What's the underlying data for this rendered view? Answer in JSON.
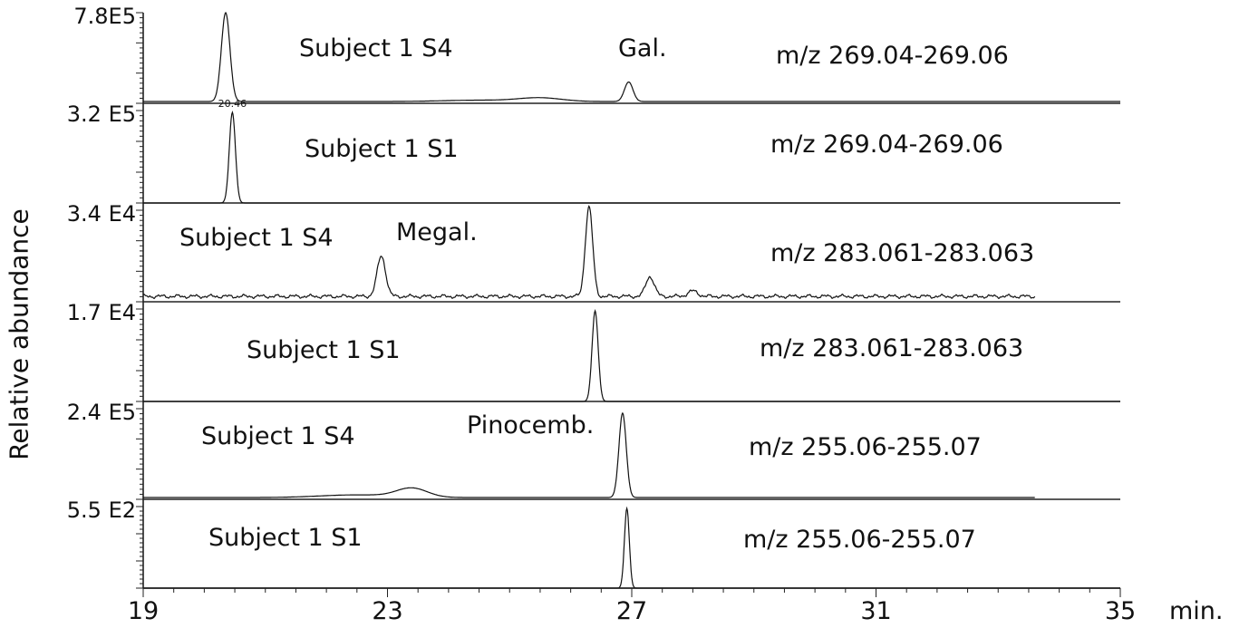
{
  "chart_data": {
    "type": "line",
    "ylabel": "Relative abundance",
    "x_unit": "min.",
    "xlim": [
      19,
      35
    ],
    "x_ticks": [
      19,
      23,
      27,
      31,
      35
    ],
    "panels": [
      {
        "scale_label": "7.8E5",
        "sample_label": "Subject 1 S4",
        "mz_label": "m/z 269.04-269.06",
        "peak_label": "Gal.",
        "baseline": 0.02,
        "noise": 0,
        "peaks": [
          {
            "rt": 20.35,
            "height": 1.0,
            "width": 0.07
          },
          {
            "rt": 26.95,
            "height": 0.22,
            "width": 0.07
          },
          {
            "rt": 25.5,
            "height": 0.04,
            "width": 0.35
          },
          {
            "rt": 24.5,
            "height": 0.015,
            "width": 0.6
          }
        ],
        "ends_at": 35
      },
      {
        "scale_label": "3.2 E5",
        "sample_label": "Subject 1 S1",
        "mz_label": "m/z 269.04-269.06",
        "rt_annotation": "20.46",
        "baseline": 0,
        "noise": 0,
        "peaks": [
          {
            "rt": 20.46,
            "height": 1.0,
            "width": 0.05
          }
        ],
        "ends_at": 35
      },
      {
        "scale_label": "3.4 E4",
        "sample_label": "Subject 1 S4",
        "mz_label": "m/z 283.061-283.063",
        "peak_label": "Megal.",
        "baseline": 0.06,
        "noise": 0.025,
        "peaks": [
          {
            "rt": 22.9,
            "height": 0.45,
            "width": 0.07
          },
          {
            "rt": 26.3,
            "height": 1.0,
            "width": 0.06
          },
          {
            "rt": 27.3,
            "height": 0.22,
            "width": 0.07
          },
          {
            "rt": 28.0,
            "height": 0.06,
            "width": 0.08
          }
        ],
        "ends_at": 33.6
      },
      {
        "scale_label": "1.7 E4",
        "sample_label": "Subject 1 S1",
        "mz_label": "m/z 283.061-283.063",
        "baseline": 0,
        "noise": 0,
        "peaks": [
          {
            "rt": 26.4,
            "height": 1.0,
            "width": 0.05
          }
        ],
        "ends_at": 35
      },
      {
        "scale_label": "2.4 E5",
        "sample_label": "Subject 1 S4",
        "mz_label": "m/z 255.06-255.07",
        "peak_label": "Pinocemb.",
        "baseline": 0.02,
        "noise": 0,
        "peaks": [
          {
            "rt": 26.85,
            "height": 0.95,
            "width": 0.06
          },
          {
            "rt": 23.4,
            "height": 0.1,
            "width": 0.25
          },
          {
            "rt": 22.5,
            "height": 0.03,
            "width": 0.6
          }
        ],
        "ends_at": 33.6
      },
      {
        "scale_label": "5.5 E2",
        "sample_label": "Subject 1 S1",
        "mz_label": "m/z 255.06-255.07",
        "baseline": 0,
        "noise": 0,
        "peaks": [
          {
            "rt": 26.92,
            "height": 1.0,
            "width": 0.04
          }
        ],
        "ends_at": 35
      }
    ]
  }
}
